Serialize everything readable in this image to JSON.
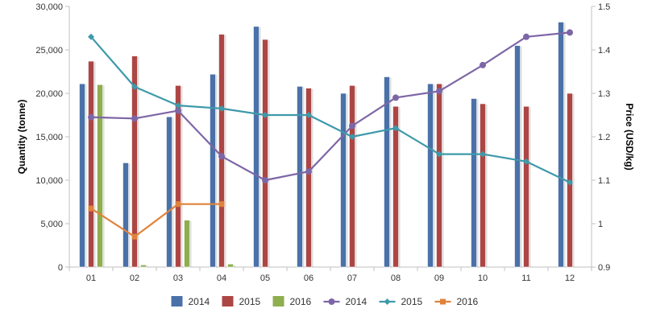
{
  "chart_data": {
    "type": "bar",
    "combo": "bar+line, dual y-axis",
    "categories": [
      "01",
      "02",
      "03",
      "04",
      "05",
      "06",
      "07",
      "08",
      "09",
      "10",
      "11",
      "12"
    ],
    "ylabel": "Quantity (tonne)",
    "y2label": "Price (USD/kg)",
    "ylim": [
      0,
      30000
    ],
    "yticks": [
      0,
      5000,
      10000,
      15000,
      20000,
      25000,
      30000
    ],
    "ytick_labels": [
      "0",
      "5,000",
      "10,000",
      "15,000",
      "20,000",
      "25,000",
      "30,000"
    ],
    "y2lim": [
      0.9,
      1.5
    ],
    "y2ticks": [
      0.9,
      1,
      1.1,
      1.2,
      1.3,
      1.4,
      1.5
    ],
    "y2tick_labels": [
      "0.9",
      "1",
      "1.1",
      "1.2",
      "1.3",
      "1.4",
      "1.5"
    ],
    "grid": false,
    "legend_position": "bottom",
    "bar_series": [
      {
        "name": "2014",
        "color": "#4a71a8",
        "values": [
          21100,
          12000,
          17300,
          22200,
          27700,
          20800,
          20000,
          21900,
          21100,
          19400,
          25500,
          28200
        ]
      },
      {
        "name": "2015",
        "color": "#ac4645",
        "values": [
          23700,
          24300,
          20900,
          26800,
          26200,
          20600,
          20900,
          18500,
          21100,
          18800,
          18500,
          20000
        ]
      },
      {
        "name": "2016",
        "color": "#8fae4f",
        "values": [
          21000,
          250,
          5400,
          350,
          null,
          null,
          null,
          null,
          null,
          null,
          null,
          null
        ]
      }
    ],
    "line_series": [
      {
        "name": "2014",
        "color": "#7d66a6",
        "marker": "circle",
        "values": [
          1.245,
          1.242,
          1.26,
          1.155,
          1.1,
          1.12,
          1.225,
          1.29,
          1.305,
          1.365,
          1.43,
          1.44
        ]
      },
      {
        "name": "2015",
        "color": "#3e9aaa",
        "marker": "diamond",
        "values": [
          1.43,
          1.315,
          1.272,
          1.265,
          1.25,
          1.25,
          1.2,
          1.22,
          1.16,
          1.16,
          1.143,
          1.095
        ]
      },
      {
        "name": "2016",
        "color": "#e0833c",
        "marker": "square",
        "values": [
          1.035,
          0.97,
          1.045,
          1.045,
          null,
          null,
          null,
          null,
          null,
          null,
          null,
          null
        ]
      }
    ]
  }
}
